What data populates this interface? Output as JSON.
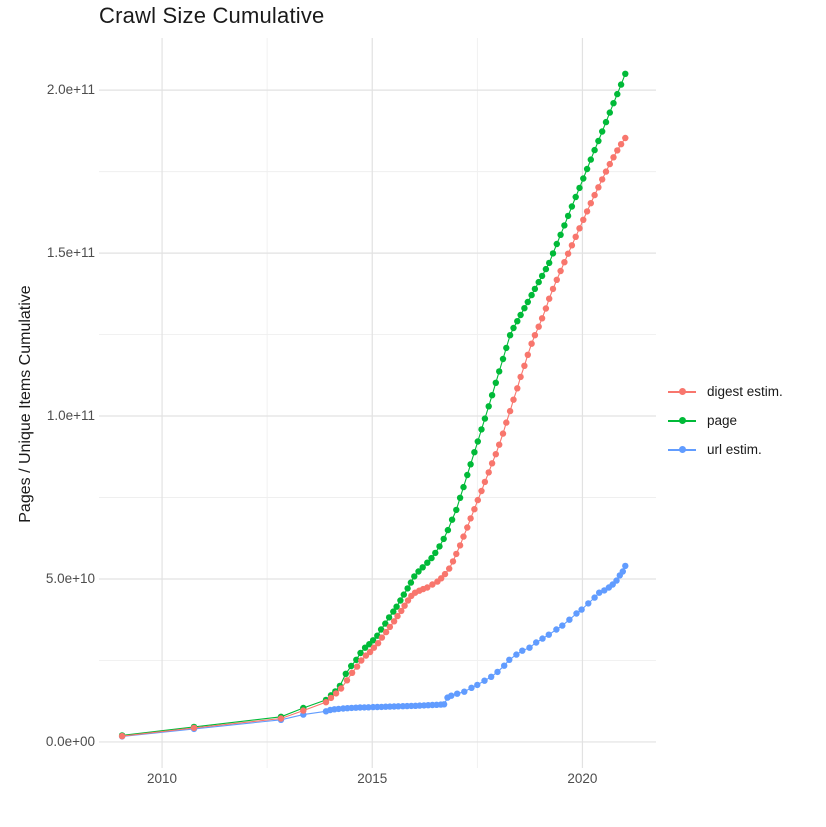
{
  "title": "Crawl Size Cumulative",
  "y_axis": {
    "label": "Pages / Unique Items Cumulative",
    "tick_labels": [
      "0.0e+00",
      "5.0e+10",
      "1.0e+11",
      "1.5e+11",
      "2.0e+11"
    ]
  },
  "x_axis": {
    "tick_labels": [
      "2010",
      "2015",
      "2020"
    ]
  },
  "legend": {
    "entries": [
      {
        "label": "digest estim.",
        "color": "#F8766D"
      },
      {
        "label": "page",
        "color": "#00BA38"
      },
      {
        "label": "url estim.",
        "color": "#619CFF"
      }
    ]
  },
  "colors": {
    "digest": "#F8766D",
    "page": "#00BA38",
    "url": "#619CFF",
    "grid_major": "#E2E2E2",
    "grid_minor": "#EFEFEF",
    "axis_text": "#4d4d4d",
    "title_text": "#1a1a1a"
  },
  "chart_data": {
    "type": "line",
    "title": "Crawl Size Cumulative",
    "xlabel": "",
    "ylabel": "Pages / Unique Items Cumulative",
    "xlim": [
      2008.5,
      2021.75
    ],
    "ylim": [
      -8000000000.0,
      216000000000.0
    ],
    "x_ticks": [
      2010,
      2015,
      2020
    ],
    "x_minor_ticks": [
      2012.5,
      2017.5
    ],
    "y_ticks": [
      0,
      50000000000.0,
      100000000000.0,
      150000000000.0,
      200000000000.0
    ],
    "y_tick_labels": [
      "0.0e+00",
      "5.0e+10",
      "1.0e+11",
      "1.5e+11",
      "2.0e+11"
    ],
    "y_minor_ticks": [
      25000000000.0,
      75000000000.0,
      125000000000.0,
      175000000000.0
    ],
    "grid": "major+minor",
    "legend_position": "right",
    "marker": "point-with-line",
    "value_unit": 1000000000.0,
    "series": [
      {
        "name": "digest estim.",
        "color": "#F8766D",
        "points": [
          [
            2009.05,
            1.8
          ],
          [
            2010.76,
            4.3
          ],
          [
            2012.83,
            7.2
          ],
          [
            2013.36,
            9.6
          ],
          [
            2013.9,
            12.2
          ],
          [
            2014.02,
            13.5
          ],
          [
            2014.14,
            14.9
          ],
          [
            2014.26,
            16.4
          ],
          [
            2014.4,
            18.9
          ],
          [
            2014.52,
            21.2
          ],
          [
            2014.64,
            23.1
          ],
          [
            2014.74,
            25.0
          ],
          [
            2014.85,
            26.5
          ],
          [
            2014.95,
            27.6
          ],
          [
            2015.04,
            28.9
          ],
          [
            2015.14,
            30.3
          ],
          [
            2015.23,
            32.0
          ],
          [
            2015.33,
            33.7
          ],
          [
            2015.42,
            35.3
          ],
          [
            2015.52,
            37.0
          ],
          [
            2015.6,
            38.6
          ],
          [
            2015.69,
            40.2
          ],
          [
            2015.77,
            41.8
          ],
          [
            2015.85,
            43.4
          ],
          [
            2015.93,
            44.8
          ],
          [
            2016.02,
            45.8
          ],
          [
            2016.12,
            46.4
          ],
          [
            2016.21,
            46.9
          ],
          [
            2016.31,
            47.4
          ],
          [
            2016.43,
            48.3
          ],
          [
            2016.55,
            49.2
          ],
          [
            2016.64,
            50.2
          ],
          [
            2016.73,
            51.5
          ],
          [
            2016.83,
            53.2
          ],
          [
            2016.92,
            55.4
          ],
          [
            2017.0,
            57.7
          ],
          [
            2017.09,
            60.3
          ],
          [
            2017.17,
            63.0
          ],
          [
            2017.26,
            65.8
          ],
          [
            2017.34,
            68.6
          ],
          [
            2017.43,
            71.4
          ],
          [
            2017.51,
            74.2
          ],
          [
            2017.6,
            77.0
          ],
          [
            2017.68,
            79.8
          ],
          [
            2017.77,
            82.7
          ],
          [
            2017.85,
            85.5
          ],
          [
            2017.94,
            88.3
          ],
          [
            2018.02,
            91.2
          ],
          [
            2018.11,
            94.6
          ],
          [
            2018.19,
            98.0
          ],
          [
            2018.28,
            101.5
          ],
          [
            2018.36,
            105.0
          ],
          [
            2018.45,
            108.5
          ],
          [
            2018.53,
            112.0
          ],
          [
            2018.62,
            115.4
          ],
          [
            2018.7,
            118.8
          ],
          [
            2018.79,
            122.2
          ],
          [
            2018.87,
            124.8
          ],
          [
            2018.96,
            127.4
          ],
          [
            2019.04,
            130.0
          ],
          [
            2019.13,
            133.0
          ],
          [
            2019.21,
            136.0
          ],
          [
            2019.3,
            139.0
          ],
          [
            2019.39,
            141.8
          ],
          [
            2019.48,
            144.5
          ],
          [
            2019.57,
            147.2
          ],
          [
            2019.66,
            149.8
          ],
          [
            2019.75,
            152.4
          ],
          [
            2019.84,
            155.0
          ],
          [
            2019.93,
            157.6
          ],
          [
            2020.02,
            160.2
          ],
          [
            2020.11,
            162.8
          ],
          [
            2020.2,
            165.3
          ],
          [
            2020.29,
            167.8
          ],
          [
            2020.38,
            170.2
          ],
          [
            2020.47,
            172.6
          ],
          [
            2020.56,
            175.0
          ],
          [
            2020.65,
            177.3
          ],
          [
            2020.74,
            179.4
          ],
          [
            2020.83,
            181.5
          ],
          [
            2020.92,
            183.4
          ],
          [
            2021.02,
            185.3
          ]
        ]
      },
      {
        "name": "page",
        "color": "#00BA38",
        "points": [
          [
            2009.05,
            2.0
          ],
          [
            2010.76,
            4.6
          ],
          [
            2012.83,
            7.7
          ],
          [
            2013.36,
            10.4
          ],
          [
            2013.9,
            12.9
          ],
          [
            2014.02,
            14.3
          ],
          [
            2014.12,
            15.5
          ],
          [
            2014.23,
            17.2
          ],
          [
            2014.37,
            20.9
          ],
          [
            2014.5,
            23.3
          ],
          [
            2014.62,
            25.2
          ],
          [
            2014.72,
            27.3
          ],
          [
            2014.83,
            28.9
          ],
          [
            2014.93,
            30.0
          ],
          [
            2015.02,
            31.2
          ],
          [
            2015.12,
            32.6
          ],
          [
            2015.21,
            34.5
          ],
          [
            2015.31,
            36.3
          ],
          [
            2015.4,
            38.2
          ],
          [
            2015.5,
            40.0
          ],
          [
            2015.58,
            41.5
          ],
          [
            2015.67,
            43.4
          ],
          [
            2015.75,
            45.2
          ],
          [
            2015.84,
            47.1
          ],
          [
            2015.92,
            48.9
          ],
          [
            2016.0,
            50.8
          ],
          [
            2016.1,
            52.3
          ],
          [
            2016.2,
            53.6
          ],
          [
            2016.31,
            55.0
          ],
          [
            2016.41,
            56.4
          ],
          [
            2016.5,
            58.0
          ],
          [
            2016.6,
            60.0
          ],
          [
            2016.7,
            62.3
          ],
          [
            2016.8,
            65.0
          ],
          [
            2016.9,
            68.2
          ],
          [
            2017.0,
            71.2
          ],
          [
            2017.09,
            74.9
          ],
          [
            2017.17,
            78.2
          ],
          [
            2017.26,
            81.9
          ],
          [
            2017.34,
            85.2
          ],
          [
            2017.43,
            88.9
          ],
          [
            2017.51,
            92.2
          ],
          [
            2017.6,
            95.9
          ],
          [
            2017.68,
            99.2
          ],
          [
            2017.77,
            103.0
          ],
          [
            2017.85,
            106.4
          ],
          [
            2017.94,
            110.2
          ],
          [
            2018.02,
            113.7
          ],
          [
            2018.11,
            117.5
          ],
          [
            2018.19,
            120.9
          ],
          [
            2018.28,
            124.8
          ],
          [
            2018.36,
            127.0
          ],
          [
            2018.45,
            129.1
          ],
          [
            2018.53,
            131.0
          ],
          [
            2018.62,
            133.1
          ],
          [
            2018.7,
            135.0
          ],
          [
            2018.79,
            137.1
          ],
          [
            2018.87,
            139.0
          ],
          [
            2018.96,
            141.1
          ],
          [
            2019.04,
            143.0
          ],
          [
            2019.13,
            145.1
          ],
          [
            2019.21,
            147.0
          ],
          [
            2019.3,
            149.9
          ],
          [
            2019.39,
            152.8
          ],
          [
            2019.48,
            155.6
          ],
          [
            2019.57,
            158.5
          ],
          [
            2019.66,
            161.4
          ],
          [
            2019.75,
            164.3
          ],
          [
            2019.84,
            167.2
          ],
          [
            2019.93,
            170.0
          ],
          [
            2020.02,
            172.9
          ],
          [
            2020.11,
            175.8
          ],
          [
            2020.2,
            178.7
          ],
          [
            2020.29,
            181.6
          ],
          [
            2020.38,
            184.4
          ],
          [
            2020.47,
            187.3
          ],
          [
            2020.56,
            190.2
          ],
          [
            2020.65,
            193.1
          ],
          [
            2020.74,
            196.0
          ],
          [
            2020.83,
            198.8
          ],
          [
            2020.92,
            201.7
          ],
          [
            2021.02,
            205.0
          ]
        ]
      },
      {
        "name": "url estim.",
        "color": "#619CFF",
        "points": [
          [
            2009.05,
            1.7
          ],
          [
            2010.76,
            4.0
          ],
          [
            2012.83,
            6.8
          ],
          [
            2013.36,
            8.4
          ],
          [
            2013.9,
            9.4
          ],
          [
            2014.0,
            9.8
          ],
          [
            2014.1,
            10.0
          ],
          [
            2014.2,
            10.15
          ],
          [
            2014.31,
            10.25
          ],
          [
            2014.41,
            10.35
          ],
          [
            2014.51,
            10.45
          ],
          [
            2014.61,
            10.5
          ],
          [
            2014.71,
            10.55
          ],
          [
            2014.81,
            10.6
          ],
          [
            2014.91,
            10.64
          ],
          [
            2015.02,
            10.68
          ],
          [
            2015.12,
            10.72
          ],
          [
            2015.22,
            10.76
          ],
          [
            2015.32,
            10.8
          ],
          [
            2015.42,
            10.84
          ],
          [
            2015.52,
            10.88
          ],
          [
            2015.62,
            10.92
          ],
          [
            2015.73,
            10.96
          ],
          [
            2015.83,
            11.0
          ],
          [
            2015.93,
            11.05
          ],
          [
            2016.03,
            11.1
          ],
          [
            2016.13,
            11.16
          ],
          [
            2016.23,
            11.22
          ],
          [
            2016.33,
            11.28
          ],
          [
            2016.43,
            11.34
          ],
          [
            2016.53,
            11.4
          ],
          [
            2016.63,
            11.45
          ],
          [
            2016.71,
            11.55
          ],
          [
            2016.79,
            13.6
          ],
          [
            2016.88,
            14.2
          ],
          [
            2017.02,
            14.8
          ],
          [
            2017.19,
            15.4
          ],
          [
            2017.36,
            16.6
          ],
          [
            2017.5,
            17.5
          ],
          [
            2017.67,
            18.8
          ],
          [
            2017.83,
            20.0
          ],
          [
            2017.98,
            21.5
          ],
          [
            2018.14,
            23.4
          ],
          [
            2018.26,
            25.2
          ],
          [
            2018.43,
            26.8
          ],
          [
            2018.57,
            28.0
          ],
          [
            2018.74,
            28.9
          ],
          [
            2018.9,
            30.5
          ],
          [
            2019.05,
            31.7
          ],
          [
            2019.2,
            32.9
          ],
          [
            2019.38,
            34.5
          ],
          [
            2019.52,
            35.7
          ],
          [
            2019.69,
            37.5
          ],
          [
            2019.86,
            39.4
          ],
          [
            2019.98,
            40.6
          ],
          [
            2020.14,
            42.5
          ],
          [
            2020.29,
            44.3
          ],
          [
            2020.4,
            45.8
          ],
          [
            2020.52,
            46.5
          ],
          [
            2020.63,
            47.4
          ],
          [
            2020.72,
            48.3
          ],
          [
            2020.81,
            49.5
          ],
          [
            2020.89,
            51.1
          ],
          [
            2020.96,
            52.3
          ],
          [
            2021.02,
            54.0
          ]
        ]
      }
    ]
  }
}
